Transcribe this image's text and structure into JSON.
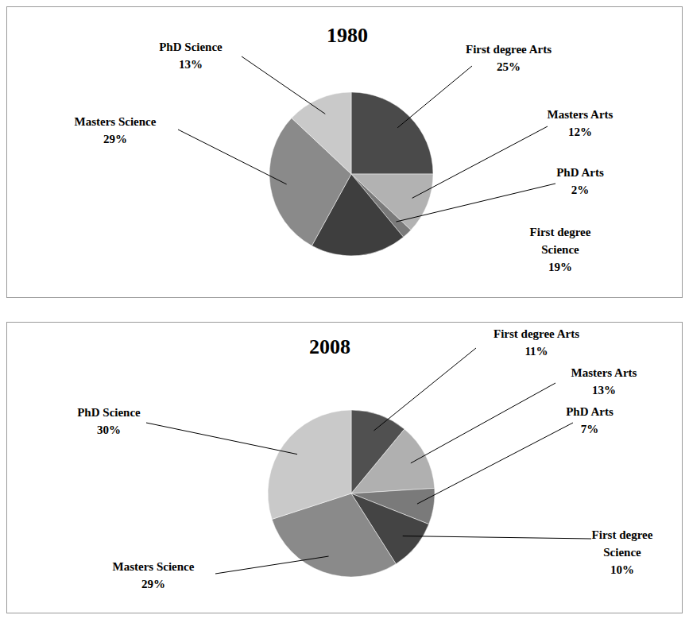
{
  "chart_data": [
    {
      "type": "pie",
      "title": "1980",
      "categories": [
        "First degree Arts",
        "Masters Arts",
        "PhD Arts",
        "First degree Science",
        "Masters Science",
        "PhD Science"
      ],
      "values": [
        25,
        12,
        2,
        19,
        29,
        13
      ],
      "value_labels": [
        "25%",
        "12%",
        "2%",
        "19%",
        "29%",
        "13%"
      ],
      "colors": [
        "#4a4a4a",
        "#b2b2b2",
        "#7a7a7a",
        "#3e3e3e",
        "#8a8a8a",
        "#c9c9c9"
      ],
      "data_labels": true
    },
    {
      "type": "pie",
      "title": "2008",
      "categories": [
        "First degree Arts",
        "Masters Arts",
        "PhD Arts",
        "First degree Science",
        "Masters Science",
        "PhD Science"
      ],
      "values": [
        11,
        13,
        7,
        10,
        29,
        30
      ],
      "value_labels": [
        "11%",
        "13%",
        "7%",
        "10%",
        "29%",
        "30%"
      ],
      "colors": [
        "#505050",
        "#b0b0b0",
        "#7a7a7a",
        "#444444",
        "#8a8a8a",
        "#c9c9c9"
      ],
      "data_labels": true
    }
  ]
}
